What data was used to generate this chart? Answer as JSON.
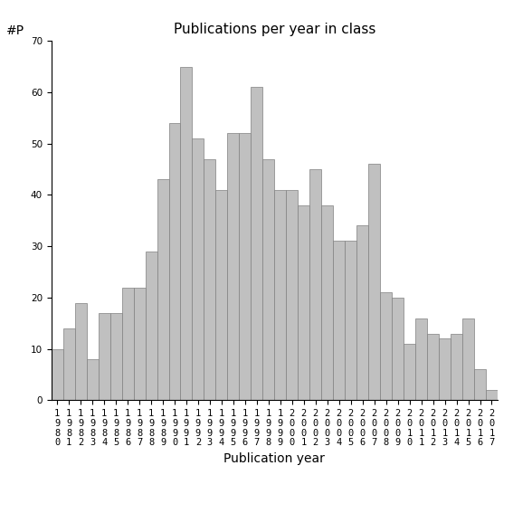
{
  "title": "Publications per year in class",
  "xlabel": "Publication year",
  "ylabel": "#P",
  "years": [
    1980,
    1981,
    1982,
    1983,
    1984,
    1985,
    1986,
    1987,
    1988,
    1989,
    1990,
    1991,
    1992,
    1993,
    1994,
    1995,
    1996,
    1997,
    1998,
    1999,
    2000,
    2001,
    2002,
    2003,
    2004,
    2005,
    2006,
    2007,
    2008,
    2009,
    2010,
    2011,
    2012,
    2013,
    2014,
    2015,
    2016,
    2017
  ],
  "values": [
    10,
    14,
    19,
    8,
    17,
    17,
    22,
    22,
    29,
    43,
    54,
    65,
    51,
    47,
    41,
    52,
    52,
    61,
    47,
    41,
    41,
    38,
    45,
    38,
    31,
    31,
    34,
    46,
    21,
    20,
    11,
    16,
    13,
    12,
    13,
    16,
    6,
    2
  ],
  "bar_color": "#c0c0c0",
  "bar_edgecolor": "#808080",
  "ylim": [
    0,
    70
  ],
  "yticks": [
    0,
    10,
    20,
    30,
    40,
    50,
    60,
    70
  ],
  "title_fontsize": 11,
  "axis_label_fontsize": 10,
  "tick_fontsize": 7.5,
  "background_color": "#ffffff"
}
